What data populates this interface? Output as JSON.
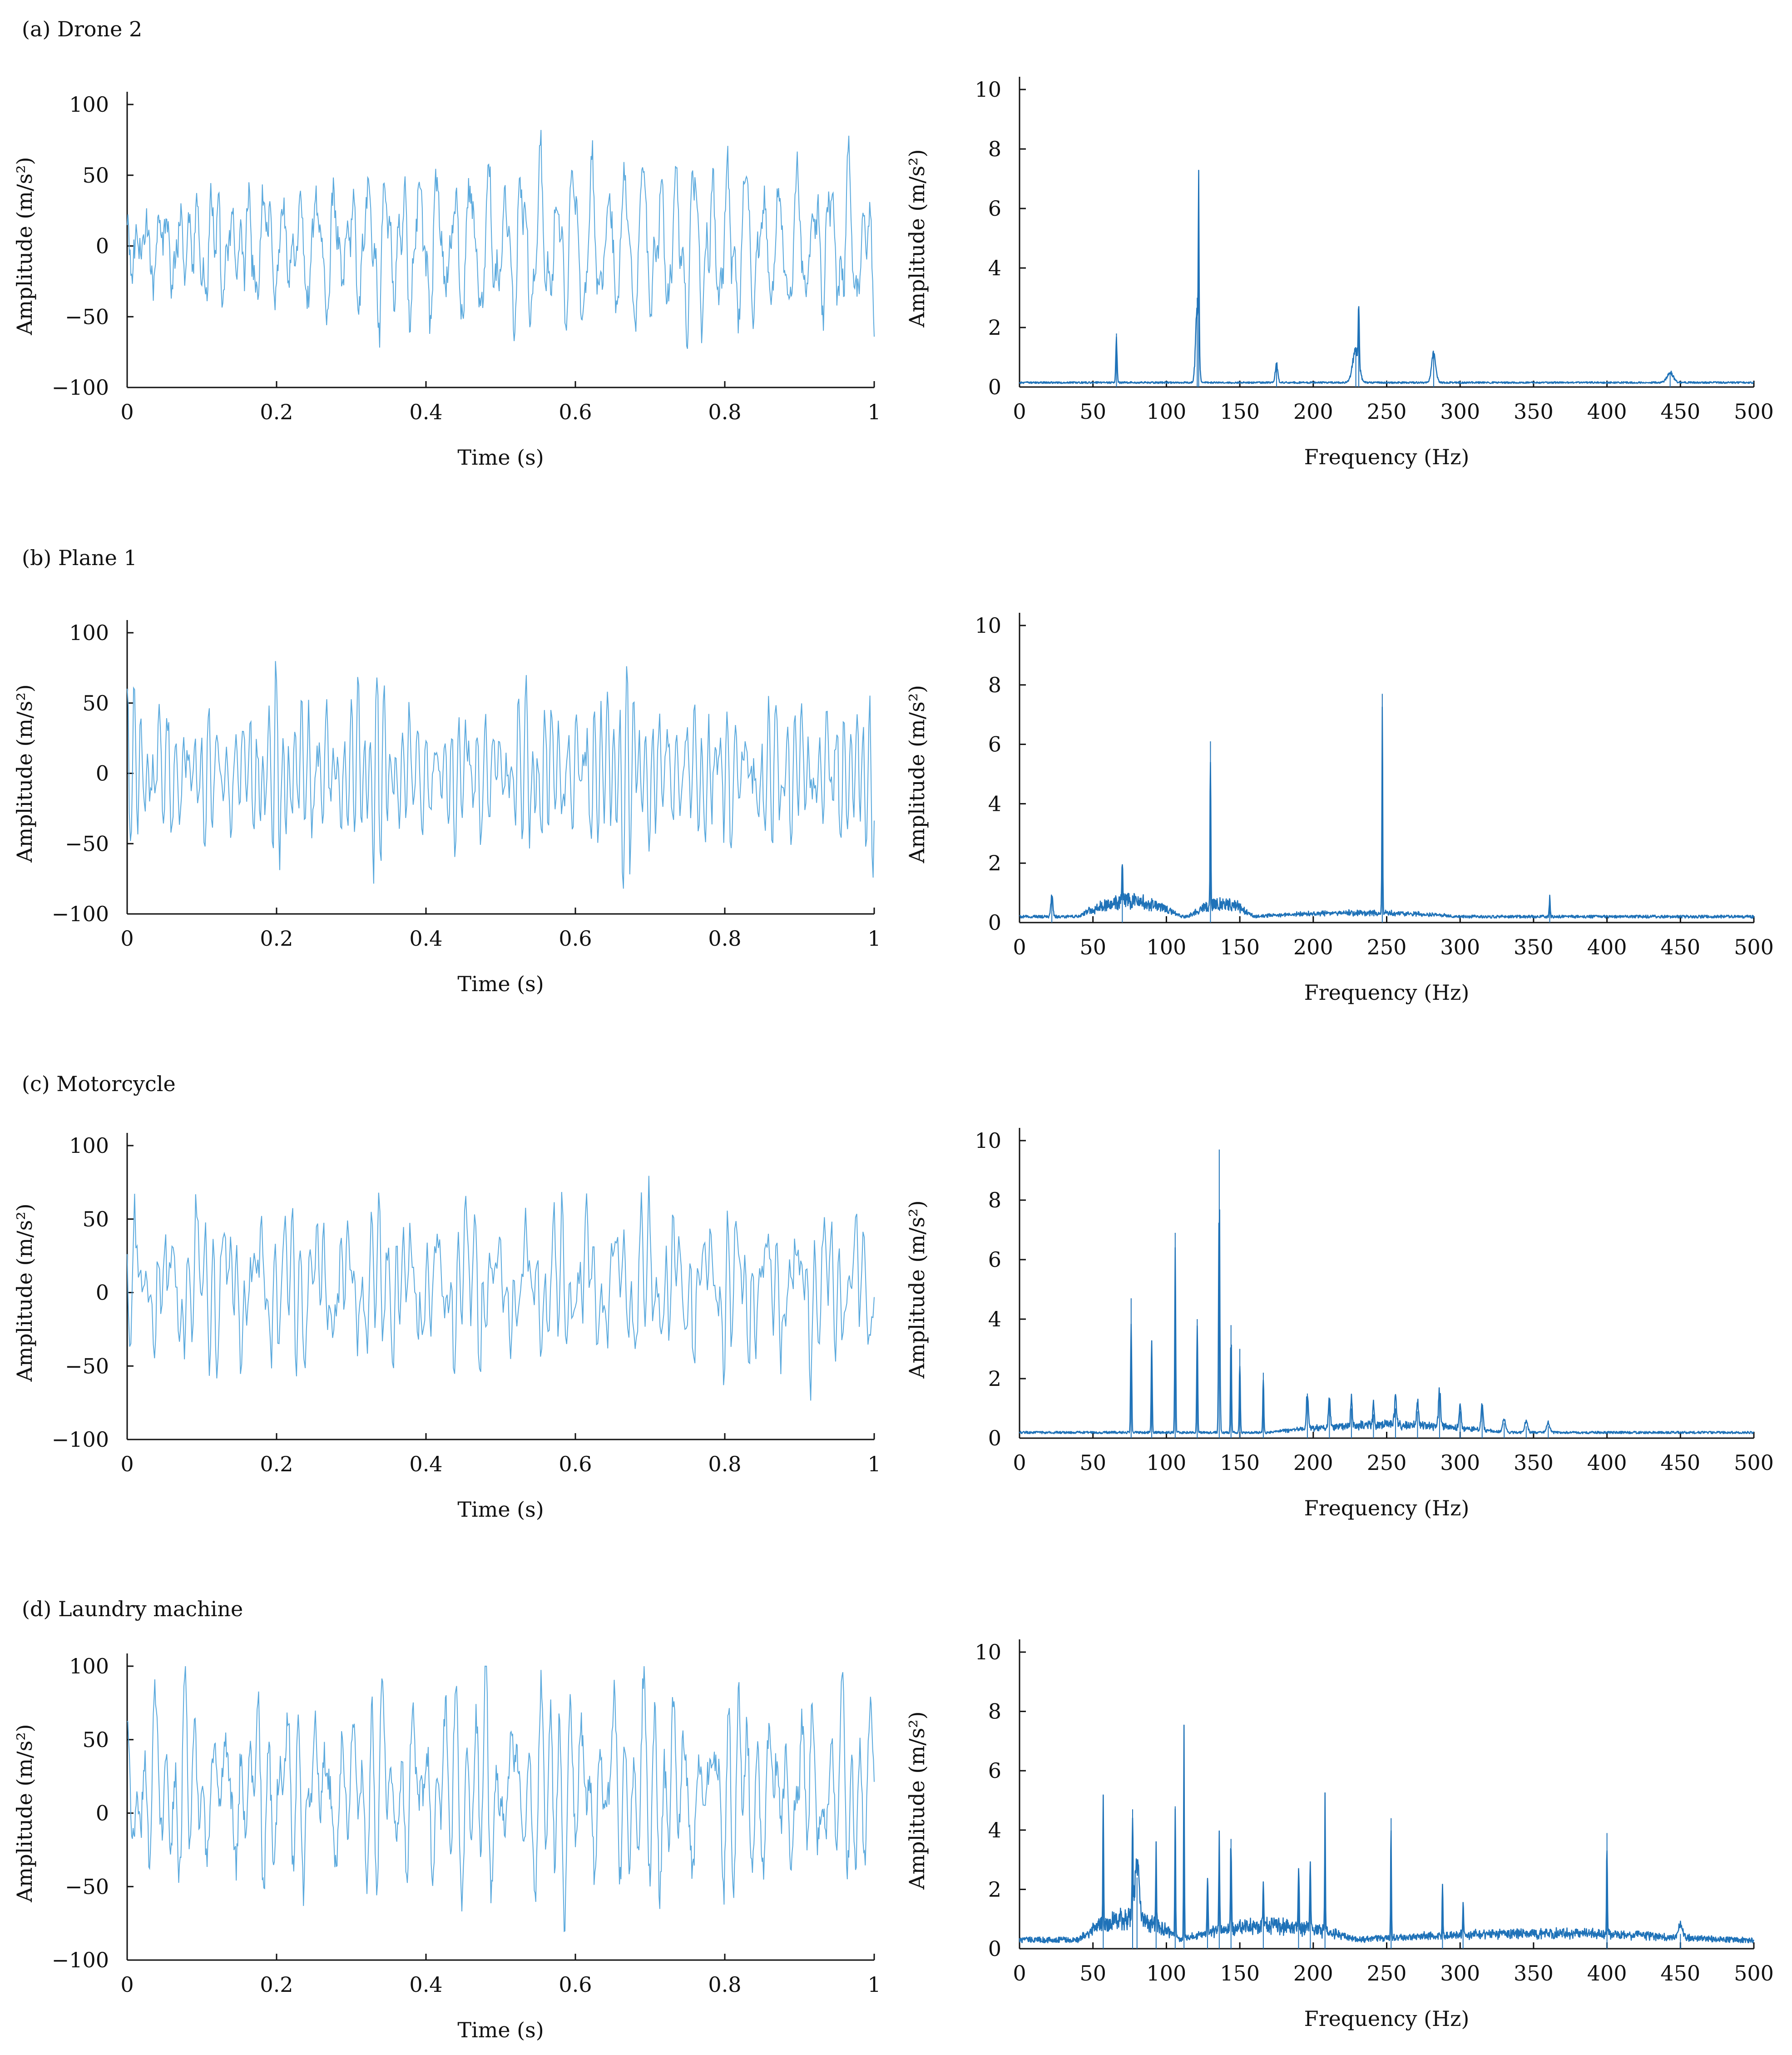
{
  "colors": {
    "signal": "#5aa9dd",
    "spectrum": "#1f72b8",
    "axis": "#111111"
  },
  "panels": [
    {
      "label": "(a) Drone 2",
      "time": {
        "type": "line",
        "xlabel": "Time (s)",
        "ylabel": "Amplitude (m/s²)",
        "xlim": [
          0,
          1
        ],
        "ylim": [
          -100,
          100
        ],
        "xticks": [
          {
            "v": 0,
            "t": "0"
          },
          {
            "v": 0.2,
            "t": "0.2"
          },
          {
            "v": 0.4,
            "t": "0.4"
          },
          {
            "v": 0.6,
            "t": "0.6"
          },
          {
            "v": 0.8,
            "t": "0.8"
          },
          {
            "v": 1,
            "t": "1"
          }
        ],
        "yticks": [
          {
            "v": 100,
            "t": "100"
          },
          {
            "v": 50,
            "t": "50"
          },
          {
            "v": 0,
            "t": "0"
          },
          {
            "v": -50,
            "t": "−50"
          },
          {
            "v": -100,
            "t": "−100"
          }
        ],
        "signal": {
          "samples": 1000,
          "peak_abs": 82,
          "seed": 11,
          "mean": 0
        }
      },
      "freq": {
        "type": "line",
        "xlabel": "Frequency (Hz)",
        "ylabel": "Amplitude (m/s²)",
        "xlim": [
          0,
          500
        ],
        "ylim": [
          0,
          10
        ],
        "xticks": [
          {
            "v": 0,
            "t": "0"
          },
          {
            "v": 50,
            "t": "50"
          },
          {
            "v": 100,
            "t": "100"
          },
          {
            "v": 150,
            "t": "150"
          },
          {
            "v": 200,
            "t": "200"
          },
          {
            "v": 250,
            "t": "250"
          },
          {
            "v": 300,
            "t": "300"
          },
          {
            "v": 350,
            "t": "350"
          },
          {
            "v": 400,
            "t": "400"
          },
          {
            "v": 450,
            "t": "450"
          },
          {
            "v": 500,
            "t": "500"
          }
        ],
        "yticks": [
          {
            "v": 0,
            "t": "0"
          },
          {
            "v": 2,
            "t": "2"
          },
          {
            "v": 4,
            "t": "4"
          },
          {
            "v": 6,
            "t": "6"
          },
          {
            "v": 8,
            "t": "8"
          },
          {
            "v": 10,
            "t": "10"
          }
        ],
        "spectrum": {
          "base": 0.12,
          "noise": 0.06,
          "seed": 21,
          "peaks": [
            [
              66,
              1.8,
              0.6
            ],
            [
              121,
              3.0,
              1.5
            ],
            [
              122,
              5.3,
              0.4
            ],
            [
              175,
              0.7,
              1.2
            ],
            [
              229,
              1.3,
              3.0
            ],
            [
              231,
              2.3,
              0.5
            ],
            [
              282,
              1.1,
              2.0
            ],
            [
              443,
              0.4,
              3.0
            ]
          ],
          "bumps": []
        }
      }
    },
    {
      "label": "(b) Plane 1",
      "time": {
        "type": "line",
        "xlabel": "Time (s)",
        "ylabel": "Amplitude (m/s²)",
        "xlim": [
          0,
          1
        ],
        "ylim": [
          -100,
          100
        ],
        "xticks": [
          {
            "v": 0,
            "t": "0"
          },
          {
            "v": 0.2,
            "t": "0.2"
          },
          {
            "v": 0.4,
            "t": "0.4"
          },
          {
            "v": 0.6,
            "t": "0.6"
          },
          {
            "v": 0.8,
            "t": "0.8"
          },
          {
            "v": 1,
            "t": "1"
          }
        ],
        "yticks": [
          {
            "v": 100,
            "t": "100"
          },
          {
            "v": 50,
            "t": "50"
          },
          {
            "v": 0,
            "t": "0"
          },
          {
            "v": -50,
            "t": "−50"
          },
          {
            "v": -100,
            "t": "−100"
          }
        ],
        "signal": {
          "samples": 700,
          "peak_abs": 82,
          "seed": 12,
          "mean": 0
        }
      },
      "freq": {
        "type": "line",
        "xlabel": "Frequency (Hz)",
        "ylabel": "Amplitude (m/s²)",
        "xlim": [
          0,
          500
        ],
        "ylim": [
          0,
          10
        ],
        "xticks": [
          {
            "v": 0,
            "t": "0"
          },
          {
            "v": 50,
            "t": "50"
          },
          {
            "v": 100,
            "t": "100"
          },
          {
            "v": 150,
            "t": "150"
          },
          {
            "v": 200,
            "t": "200"
          },
          {
            "v": 250,
            "t": "250"
          },
          {
            "v": 300,
            "t": "300"
          },
          {
            "v": 350,
            "t": "350"
          },
          {
            "v": 400,
            "t": "400"
          },
          {
            "v": 450,
            "t": "450"
          },
          {
            "v": 500,
            "t": "500"
          }
        ],
        "yticks": [
          {
            "v": 0,
            "t": "0"
          },
          {
            "v": 2,
            "t": "2"
          },
          {
            "v": 4,
            "t": "4"
          },
          {
            "v": 6,
            "t": "6"
          },
          {
            "v": 8,
            "t": "8"
          },
          {
            "v": 10,
            "t": "10"
          }
        ],
        "spectrum": {
          "base": 0.15,
          "noise": 0.1,
          "seed": 22,
          "peaks": [
            [
              22,
              0.8,
              1.0
            ],
            [
              70,
              1.5,
              0.5
            ],
            [
              130,
              6.1,
              0.4
            ],
            [
              247,
              7.7,
              0.4
            ],
            [
              361,
              0.7,
              0.5
            ]
          ],
          "bumps": [
            [
              40,
              110,
              0.6
            ],
            [
              115,
              160,
              0.5
            ],
            [
              160,
              300,
              0.15
            ]
          ]
        }
      }
    },
    {
      "label": "(c) Motorcycle",
      "time": {
        "type": "line",
        "xlabel": "Time (s)",
        "ylabel": "Amplitude (m/s²)",
        "xlim": [
          0,
          1
        ],
        "ylim": [
          -100,
          100
        ],
        "xticks": [
          {
            "v": 0,
            "t": "0"
          },
          {
            "v": 0.2,
            "t": "0.2"
          },
          {
            "v": 0.4,
            "t": "0.4"
          },
          {
            "v": 0.6,
            "t": "0.6"
          },
          {
            "v": 0.8,
            "t": "0.8"
          },
          {
            "v": 1,
            "t": "1"
          }
        ],
        "yticks": [
          {
            "v": 100,
            "t": "100"
          },
          {
            "v": 50,
            "t": "50"
          },
          {
            "v": 0,
            "t": "0"
          },
          {
            "v": -50,
            "t": "−50"
          },
          {
            "v": -100,
            "t": "−100"
          }
        ],
        "signal": {
          "samples": 600,
          "peak_abs": 80,
          "seed": 13,
          "mean": 5
        }
      },
      "freq": {
        "type": "line",
        "xlabel": "Frequency (Hz)",
        "ylabel": "Amplitude (m/s²)",
        "xlim": [
          0,
          500
        ],
        "ylim": [
          0,
          10
        ],
        "xticks": [
          {
            "v": 0,
            "t": "0"
          },
          {
            "v": 50,
            "t": "50"
          },
          {
            "v": 100,
            "t": "100"
          },
          {
            "v": 150,
            "t": "150"
          },
          {
            "v": 200,
            "t": "200"
          },
          {
            "v": 250,
            "t": "250"
          },
          {
            "v": 300,
            "t": "300"
          },
          {
            "v": 350,
            "t": "350"
          },
          {
            "v": 400,
            "t": "400"
          },
          {
            "v": 450,
            "t": "450"
          },
          {
            "v": 500,
            "t": "500"
          }
        ],
        "yticks": [
          {
            "v": 0,
            "t": "0"
          },
          {
            "v": 2,
            "t": "2"
          },
          {
            "v": 4,
            "t": "4"
          },
          {
            "v": 6,
            "t": "6"
          },
          {
            "v": 8,
            "t": "8"
          },
          {
            "v": 10,
            "t": "10"
          }
        ],
        "spectrum": {
          "base": 0.15,
          "noise": 0.08,
          "seed": 23,
          "peaks": [
            [
              76,
              4.7,
              0.5
            ],
            [
              90,
              3.2,
              0.5
            ],
            [
              106,
              6.9,
              0.5
            ],
            [
              121,
              4.0,
              0.5
            ],
            [
              136,
              9.7,
              0.6
            ],
            [
              144,
              3.8,
              0.5
            ],
            [
              150,
              3.0,
              0.5
            ],
            [
              166,
              2.2,
              0.5
            ],
            [
              196,
              1.5,
              0.8
            ],
            [
              211,
              1.2,
              0.8
            ],
            [
              226,
              1.0,
              0.8
            ],
            [
              241,
              0.8,
              0.8
            ],
            [
              256,
              1.0,
              1.0
            ],
            [
              271,
              0.9,
              1.0
            ],
            [
              286,
              1.4,
              1.0
            ],
            [
              300,
              0.9,
              1.0
            ],
            [
              315,
              1.0,
              1.0
            ],
            [
              330,
              0.5,
              1.5
            ],
            [
              345,
              0.4,
              1.5
            ],
            [
              360,
              0.4,
              1.5
            ]
          ],
          "bumps": [
            [
              170,
              330,
              0.3
            ]
          ]
        }
      }
    },
    {
      "label": "(d) Laundry machine",
      "time": {
        "type": "line",
        "xlabel": "Time (s)",
        "ylabel": "Amplitude (m/s²)",
        "xlim": [
          0,
          1
        ],
        "ylim": [
          -100,
          100
        ],
        "xticks": [
          {
            "v": 0,
            "t": "0"
          },
          {
            "v": 0.2,
            "t": "0.2"
          },
          {
            "v": 0.4,
            "t": "0.4"
          },
          {
            "v": 0.6,
            "t": "0.6"
          },
          {
            "v": 0.8,
            "t": "0.8"
          },
          {
            "v": 1,
            "t": "1"
          }
        ],
        "yticks": [
          {
            "v": 100,
            "t": "100"
          },
          {
            "v": 50,
            "t": "50"
          },
          {
            "v": 0,
            "t": "0"
          },
          {
            "v": -50,
            "t": "−50"
          },
          {
            "v": -100,
            "t": "−100"
          }
        ],
        "signal": {
          "samples": 1000,
          "peak_abs": 100,
          "seed": 14,
          "mean": 15
        }
      },
      "freq": {
        "type": "line",
        "xlabel": "Frequency (Hz)",
        "ylabel": "Amplitude (m/s²)",
        "xlim": [
          0,
          500
        ],
        "ylim": [
          0,
          10
        ],
        "xticks": [
          {
            "v": 0,
            "t": "0"
          },
          {
            "v": 50,
            "t": "50"
          },
          {
            "v": 100,
            "t": "100"
          },
          {
            "v": 150,
            "t": "150"
          },
          {
            "v": 200,
            "t": "200"
          },
          {
            "v": 250,
            "t": "250"
          },
          {
            "v": 300,
            "t": "300"
          },
          {
            "v": 350,
            "t": "350"
          },
          {
            "v": 400,
            "t": "400"
          },
          {
            "v": 450,
            "t": "450"
          },
          {
            "v": 500,
            "t": "500"
          }
        ],
        "yticks": [
          {
            "v": 0,
            "t": "0"
          },
          {
            "v": 2,
            "t": "2"
          },
          {
            "v": 4,
            "t": "4"
          },
          {
            "v": 6,
            "t": "6"
          },
          {
            "v": 8,
            "t": "8"
          },
          {
            "v": 10,
            "t": "10"
          }
        ],
        "spectrum": {
          "base": 0.2,
          "noise": 0.2,
          "seed": 24,
          "peaks": [
            [
              57,
              4.8,
              0.4
            ],
            [
              77,
              4.7,
              0.4
            ],
            [
              80,
              2.4,
              2.0
            ],
            [
              93,
              3.1,
              0.4
            ],
            [
              106,
              4.8,
              0.4
            ],
            [
              112,
              7.3,
              0.4
            ],
            [
              128,
              2.2,
              0.5
            ],
            [
              136,
              3.2,
              0.5
            ],
            [
              144,
              3.7,
              0.5
            ],
            [
              166,
              1.6,
              0.5
            ],
            [
              190,
              2.4,
              0.5
            ],
            [
              198,
              2.5,
              0.5
            ],
            [
              208,
              4.8,
              0.4
            ],
            [
              253,
              4.4,
              0.4
            ],
            [
              288,
              1.8,
              0.4
            ],
            [
              302,
              1.4,
              0.4
            ],
            [
              400,
              3.9,
              0.4
            ],
            [
              450,
              0.5,
              2.0
            ]
          ],
          "bumps": [
            [
              40,
              110,
              0.8
            ],
            [
              110,
              230,
              0.55
            ],
            [
              230,
              480,
              0.25
            ]
          ]
        }
      }
    }
  ]
}
